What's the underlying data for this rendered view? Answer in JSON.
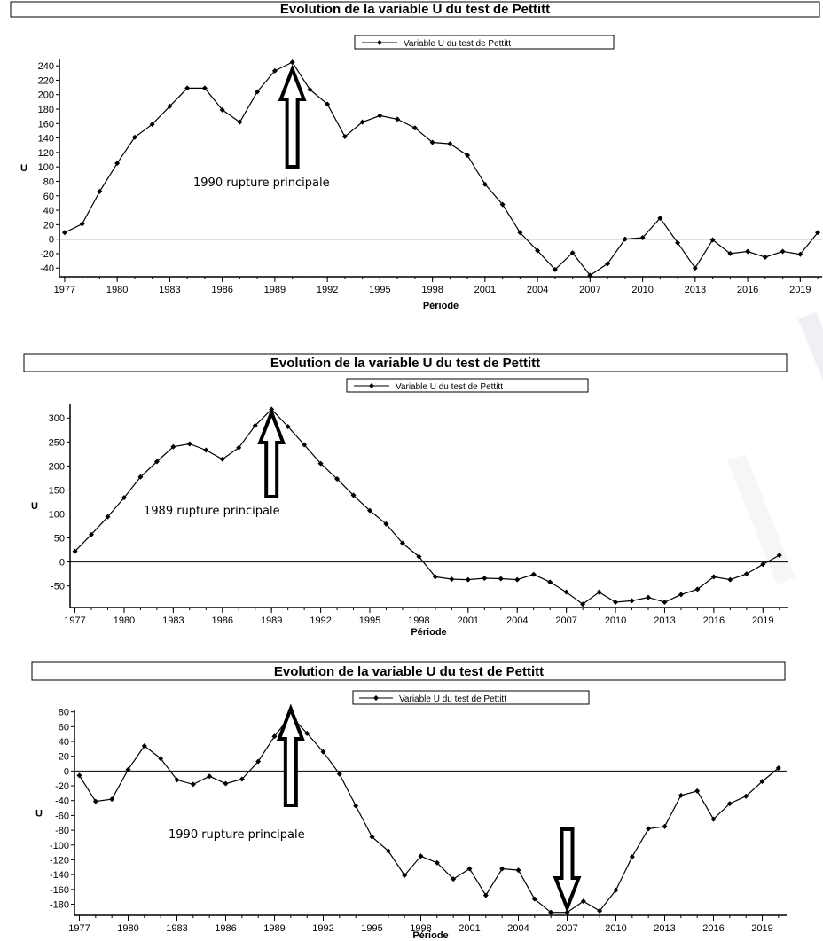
{
  "colors": {
    "line": "#000000",
    "background": "#ffffff",
    "watermark": "#eef0f3"
  },
  "chart_data": [
    {
      "type": "line",
      "title": "Evolution de la variable U du test de Pettitt",
      "xlabel": "Période",
      "ylabel": "U",
      "legend": "Variable U du test de Pettitt",
      "legend_position": "top-center",
      "x_ticks": [
        "1977",
        "1980",
        "1983",
        "1986",
        "1989",
        "1992",
        "1995",
        "1998",
        "2001",
        "2004",
        "2007",
        "2010",
        "2013",
        "2016",
        "2019"
      ],
      "y_ticks": [
        240,
        220,
        200,
        180,
        160,
        140,
        120,
        100,
        80,
        60,
        40,
        20,
        0,
        -20,
        -40
      ],
      "xlim": [
        1976.7,
        1979.3
      ],
      "ylim": [
        -52,
        250
      ],
      "annotation": {
        "text": "1990 rupture principale",
        "year": 1990,
        "arrow": "up"
      },
      "series": [
        {
          "name": "Variable U du test de Pettitt",
          "x": [
            1977,
            1978,
            1979,
            1980,
            1981,
            1982,
            1983,
            1984,
            1985,
            1986,
            1987,
            1988,
            1989,
            1990,
            1991,
            1992,
            1993,
            1994,
            1995,
            1996,
            1997,
            1998,
            1999,
            2000,
            2001,
            2002,
            2003,
            2004,
            2005,
            2006,
            2007,
            2008,
            2009,
            2010,
            2011,
            2012,
            2013,
            2014,
            2015,
            2016,
            2017,
            2018,
            2019,
            2020
          ],
          "values": [
            9,
            21,
            66,
            105,
            141,
            159,
            184,
            209,
            209,
            179,
            162,
            204,
            233,
            245,
            207,
            187,
            142,
            162,
            171,
            166,
            154,
            134,
            132,
            116,
            76,
            48,
            9,
            -16,
            -42,
            -19,
            -50,
            -34,
            0,
            2,
            29,
            -5,
            -40,
            -1,
            -20,
            -17,
            -25,
            -17,
            -21,
            9
          ]
        }
      ]
    },
    {
      "type": "line",
      "title": "Evolution de la variable U du test de Pettitt",
      "xlabel": "Période",
      "ylabel": "U",
      "legend": "Variable U du test de Pettitt",
      "legend_position": "top-center",
      "x_ticks": [
        "1977",
        "1980",
        "1983",
        "1986",
        "1989",
        "1992",
        "1995",
        "1998",
        "2001",
        "2004",
        "2007",
        "2010",
        "2013",
        "2016",
        "2019"
      ],
      "y_ticks": [
        300,
        250,
        200,
        150,
        100,
        50,
        0,
        -50
      ],
      "xlim": [
        1976.7,
        2020.5
      ],
      "ylim": [
        -95,
        330
      ],
      "annotation": {
        "text": "1989 rupture principale",
        "year": 1989,
        "arrow": "up"
      },
      "series": [
        {
          "name": "Variable U du test de Pettitt",
          "x": [
            1977,
            1978,
            1979,
            1980,
            1981,
            1982,
            1983,
            1984,
            1985,
            1986,
            1987,
            1988,
            1989,
            1990,
            1991,
            1992,
            1993,
            1994,
            1995,
            1996,
            1997,
            1998,
            1999,
            2000,
            2001,
            2002,
            2003,
            2004,
            2005,
            2006,
            2007,
            2008,
            2009,
            2010,
            2011,
            2012,
            2013,
            2014,
            2015,
            2016,
            2017,
            2018,
            2019,
            2020
          ],
          "values": [
            22,
            57,
            94,
            134,
            177,
            209,
            240,
            246,
            233,
            214,
            238,
            284,
            318,
            282,
            244,
            205,
            173,
            139,
            107,
            79,
            39,
            11,
            -31,
            -36,
            -37,
            -34,
            -35,
            -37,
            -26,
            -42,
            -63,
            -88,
            -63,
            -84,
            -81,
            -74,
            -84,
            -68,
            -57,
            -31,
            -37,
            -25,
            -5,
            14
          ]
        }
      ]
    },
    {
      "type": "line",
      "title": "Evolution de la variable U du test de Pettitt",
      "xlabel": "Période",
      "ylabel": "U",
      "legend": "Variable U du test de Pettitt",
      "legend_position": "top-center",
      "x_ticks": [
        "1977",
        "1980",
        "1983",
        "1986",
        "1989",
        "1992",
        "1995",
        "1998",
        "2001",
        "2004",
        "2007",
        "2010",
        "2013",
        "2016",
        "2019"
      ],
      "y_ticks": [
        80,
        60,
        40,
        20,
        0,
        -20,
        -40,
        -60,
        -80,
        -100,
        -120,
        -140,
        -160,
        -180
      ],
      "xlim": [
        1976.7,
        2020.5
      ],
      "ylim": [
        -195,
        82
      ],
      "annotation": {
        "text": "1990 rupture principale",
        "year": 1990,
        "arrow": "up",
        "second_arrow_year": 2007
      },
      "series": [
        {
          "name": "Variable U du test de Pettitt",
          "x": [
            1977,
            1978,
            1979,
            1980,
            1981,
            1982,
            1983,
            1984,
            1985,
            1986,
            1987,
            1988,
            1989,
            1990,
            1991,
            1992,
            1993,
            1994,
            1995,
            1996,
            1997,
            1998,
            1999,
            2000,
            2001,
            2002,
            2003,
            2004,
            2005,
            2006,
            2007,
            2008,
            2009,
            2010,
            2011,
            2012,
            2013,
            2014,
            2015,
            2016,
            2017,
            2018,
            2019,
            2020
          ],
          "values": [
            -6,
            -41,
            -38,
            2,
            34,
            17,
            -12,
            -18,
            -7,
            -17,
            -11,
            13,
            47,
            75,
            51,
            26,
            -4,
            -47,
            -89,
            -108,
            -141,
            -115,
            -124,
            -146,
            -132,
            -168,
            -132,
            -134,
            -173,
            -191,
            -191,
            -176,
            -189,
            -161,
            -116,
            -78,
            -75,
            -33,
            -27,
            -65,
            -44,
            -34,
            -14,
            4
          ]
        }
      ]
    }
  ]
}
